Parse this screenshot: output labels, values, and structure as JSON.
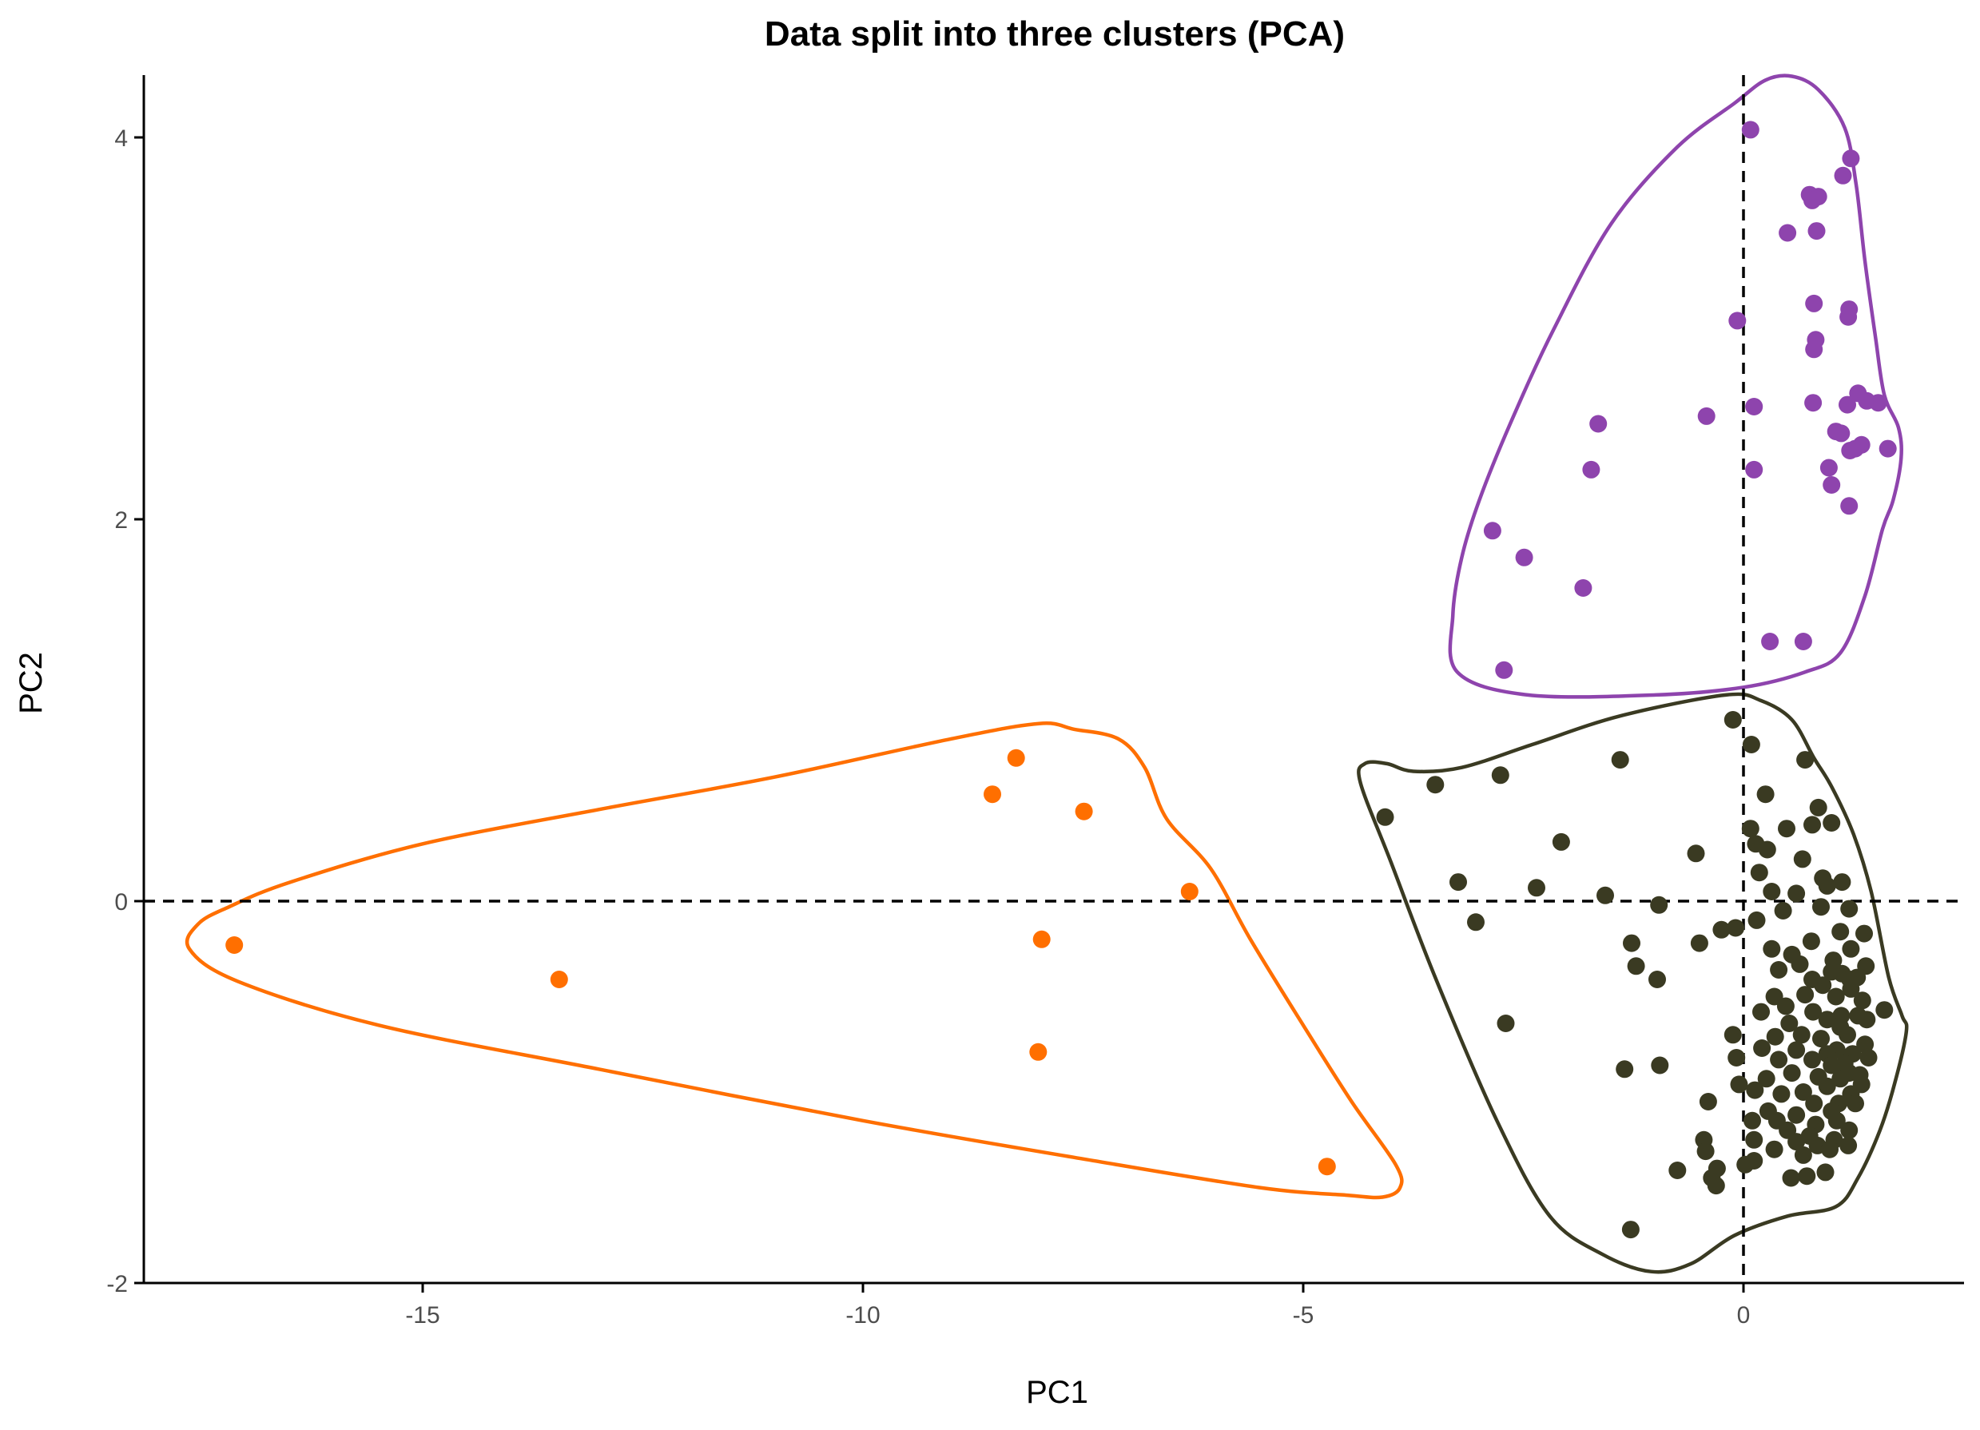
{
  "chart_data": {
    "type": "scatter",
    "title": "Data split into three clusters (PCA)",
    "xlabel": "PC1",
    "ylabel": "PC2",
    "xlim": [
      -18.4,
      5.0
    ],
    "ylim": [
      -2.0,
      4.3
    ],
    "xticks": [
      -15,
      -10,
      -5,
      0
    ],
    "yticks": [
      -2,
      0,
      2,
      4
    ],
    "tick_labels_x": [
      "-15",
      "-10",
      "-5",
      "0"
    ],
    "tick_labels_y": [
      "-2",
      "0",
      "2",
      "4"
    ],
    "grid": false,
    "legend": "none",
    "reference_lines": {
      "x": 0,
      "y": 0,
      "style": "dashed"
    },
    "series": [
      {
        "color": "#8E44AD",
        "points": [
          [
            0.08,
            4.04
          ],
          [
            1.22,
            3.89
          ],
          [
            1.13,
            3.8
          ],
          [
            0.75,
            3.7
          ],
          [
            0.85,
            3.69
          ],
          [
            0.78,
            3.67
          ],
          [
            0.5,
            3.5
          ],
          [
            0.83,
            3.51
          ],
          [
            0.8,
            3.13
          ],
          [
            1.2,
            3.1
          ],
          [
            1.19,
            3.06
          ],
          [
            -0.07,
            3.04
          ],
          [
            0.82,
            2.94
          ],
          [
            0.8,
            2.89
          ],
          [
            1.3,
            2.66
          ],
          [
            1.4,
            2.62
          ],
          [
            1.53,
            2.61
          ],
          [
            1.18,
            2.6
          ],
          [
            0.79,
            2.61
          ],
          [
            0.12,
            2.59
          ],
          [
            -0.42,
            2.54
          ],
          [
            -1.65,
            2.5
          ],
          [
            1.05,
            2.46
          ],
          [
            1.11,
            2.45
          ],
          [
            1.34,
            2.39
          ],
          [
            1.21,
            2.36
          ],
          [
            1.27,
            2.37
          ],
          [
            1.64,
            2.37
          ],
          [
            0.12,
            2.26
          ],
          [
            -1.73,
            2.26
          ],
          [
            0.97,
            2.27
          ],
          [
            1.0,
            2.18
          ],
          [
            1.2,
            2.07
          ],
          [
            -2.85,
            1.94
          ],
          [
            -2.49,
            1.8
          ],
          [
            -1.82,
            1.64
          ],
          [
            0.3,
            1.36
          ],
          [
            0.68,
            1.36
          ],
          [
            -2.72,
            1.21
          ]
        ]
      },
      {
        "color": "#FF6F00",
        "points": [
          [
            -8.26,
            0.75
          ],
          [
            -8.53,
            0.56
          ],
          [
            -7.49,
            0.47
          ],
          [
            -6.29,
            0.05
          ],
          [
            -17.14,
            -0.23
          ],
          [
            -7.97,
            -0.2
          ],
          [
            -13.45,
            -0.41
          ],
          [
            -8.01,
            -0.79
          ],
          [
            -4.73,
            -1.39
          ]
        ]
      },
      {
        "color": "#3A3A22",
        "points": [
          [
            -0.12,
            0.95
          ],
          [
            0.09,
            0.82
          ],
          [
            0.7,
            0.74
          ],
          [
            -1.4,
            0.74
          ],
          [
            -2.76,
            0.66
          ],
          [
            -3.5,
            0.61
          ],
          [
            0.25,
            0.56
          ],
          [
            0.85,
            0.49
          ],
          [
            -4.07,
            0.44
          ],
          [
            1.0,
            0.41
          ],
          [
            0.78,
            0.4
          ],
          [
            0.49,
            0.38
          ],
          [
            0.08,
            0.38
          ],
          [
            -2.07,
            0.31
          ],
          [
            0.14,
            0.3
          ],
          [
            0.27,
            0.27
          ],
          [
            -0.54,
            0.25
          ],
          [
            0.67,
            0.22
          ],
          [
            0.18,
            0.15
          ],
          [
            0.9,
            0.12
          ],
          [
            1.12,
            0.1
          ],
          [
            0.95,
            0.08
          ],
          [
            -3.24,
            0.1
          ],
          [
            -2.35,
            0.07
          ],
          [
            -1.57,
            0.03
          ],
          [
            0.32,
            0.05
          ],
          [
            0.6,
            0.04
          ],
          [
            0.88,
            -0.03
          ],
          [
            1.2,
            -0.04
          ],
          [
            0.45,
            -0.05
          ],
          [
            -0.96,
            -0.02
          ],
          [
            -3.04,
            -0.11
          ],
          [
            0.15,
            -0.1
          ],
          [
            -0.25,
            -0.15
          ],
          [
            -0.09,
            -0.14
          ],
          [
            1.1,
            -0.16
          ],
          [
            1.37,
            -0.17
          ],
          [
            0.77,
            -0.21
          ],
          [
            -0.5,
            -0.22
          ],
          [
            -1.27,
            -0.22
          ],
          [
            0.32,
            -0.25
          ],
          [
            1.22,
            -0.25
          ],
          [
            0.55,
            -0.28
          ],
          [
            1.02,
            -0.31
          ],
          [
            0.64,
            -0.33
          ],
          [
            -1.22,
            -0.34
          ],
          [
            0.4,
            -0.36
          ],
          [
            1.39,
            -0.34
          ],
          [
            1.0,
            -0.37
          ],
          [
            1.12,
            -0.38
          ],
          [
            1.29,
            -0.4
          ],
          [
            1.21,
            -0.41
          ],
          [
            0.78,
            -0.41
          ],
          [
            -0.98,
            -0.41
          ],
          [
            0.9,
            -0.44
          ],
          [
            1.22,
            -0.46
          ],
          [
            0.7,
            -0.49
          ],
          [
            0.35,
            -0.5
          ],
          [
            1.05,
            -0.5
          ],
          [
            1.35,
            -0.52
          ],
          [
            0.48,
            -0.55
          ],
          [
            0.79,
            -0.58
          ],
          [
            1.11,
            -0.6
          ],
          [
            1.3,
            -0.6
          ],
          [
            1.6,
            -0.57
          ],
          [
            0.2,
            -0.58
          ],
          [
            -2.7,
            -0.64
          ],
          [
            0.52,
            -0.64
          ],
          [
            0.95,
            -0.62
          ],
          [
            1.4,
            -0.62
          ],
          [
            1.1,
            -0.66
          ],
          [
            -0.12,
            -0.7
          ],
          [
            0.66,
            -0.7
          ],
          [
            1.18,
            -0.7
          ],
          [
            0.36,
            -0.71
          ],
          [
            0.88,
            -0.72
          ],
          [
            1.38,
            -0.75
          ],
          [
            1.06,
            -0.78
          ],
          [
            0.6,
            -0.78
          ],
          [
            0.21,
            -0.77
          ],
          [
            0.95,
            -0.8
          ],
          [
            1.24,
            -0.8
          ],
          [
            -0.08,
            -0.82
          ],
          [
            1.42,
            -0.82
          ],
          [
            0.4,
            -0.83
          ],
          [
            0.78,
            -0.83
          ],
          [
            1.0,
            -0.86
          ],
          [
            1.15,
            -0.85
          ],
          [
            -0.95,
            -0.86
          ],
          [
            -1.35,
            -0.88
          ],
          [
            0.55,
            -0.9
          ],
          [
            1.2,
            -0.9
          ],
          [
            1.32,
            -0.91
          ],
          [
            0.26,
            -0.93
          ],
          [
            0.85,
            -0.92
          ],
          [
            1.1,
            -0.93
          ],
          [
            1.34,
            -0.96
          ],
          [
            -0.05,
            -0.96
          ],
          [
            0.95,
            -0.97
          ],
          [
            0.13,
            -0.99
          ],
          [
            0.68,
            -1.0
          ],
          [
            1.22,
            -1.01
          ],
          [
            0.43,
            -1.01
          ],
          [
            -0.4,
            -1.05
          ],
          [
            0.8,
            -1.06
          ],
          [
            1.08,
            -1.06
          ],
          [
            1.27,
            -1.06
          ],
          [
            0.28,
            -1.1
          ],
          [
            1.0,
            -1.1
          ],
          [
            0.6,
            -1.12
          ],
          [
            0.38,
            -1.15
          ],
          [
            0.1,
            -1.15
          ],
          [
            0.82,
            -1.17
          ],
          [
            1.06,
            -1.15
          ],
          [
            0.5,
            -1.2
          ],
          [
            1.2,
            -1.2
          ],
          [
            0.75,
            -1.23
          ],
          [
            0.12,
            -1.25
          ],
          [
            1.03,
            -1.25
          ],
          [
            0.6,
            -1.26
          ],
          [
            0.84,
            -1.28
          ],
          [
            1.19,
            -1.28
          ],
          [
            -0.45,
            -1.25
          ],
          [
            0.35,
            -1.3
          ],
          [
            0.98,
            -1.3
          ],
          [
            0.68,
            -1.33
          ],
          [
            -0.43,
            -1.31
          ],
          [
            0.12,
            -1.36
          ],
          [
            0.02,
            -1.38
          ],
          [
            0.93,
            -1.42
          ],
          [
            -0.3,
            -1.4
          ],
          [
            0.72,
            -1.44
          ],
          [
            -0.75,
            -1.41
          ],
          [
            -0.36,
            -1.45
          ],
          [
            0.54,
            -1.45
          ],
          [
            -0.31,
            -1.49
          ],
          [
            -1.28,
            -1.72
          ]
        ]
      }
    ],
    "hulls": [
      {
        "color": "#8E44AD",
        "points": [
          [
            -0.1,
            4.18
          ],
          [
            0.25,
            4.3
          ],
          [
            0.55,
            4.32
          ],
          [
            0.85,
            4.25
          ],
          [
            1.15,
            4.05
          ],
          [
            1.28,
            3.75
          ],
          [
            1.38,
            3.35
          ],
          [
            1.5,
            2.95
          ],
          [
            1.6,
            2.65
          ],
          [
            1.76,
            2.48
          ],
          [
            1.79,
            2.32
          ],
          [
            1.7,
            2.1
          ],
          [
            1.58,
            1.95
          ],
          [
            1.38,
            1.6
          ],
          [
            1.1,
            1.3
          ],
          [
            0.7,
            1.2
          ],
          [
            0.0,
            1.12
          ],
          [
            -1.0,
            1.08
          ],
          [
            -2.45,
            1.08
          ],
          [
            -3.25,
            1.2
          ],
          [
            -3.3,
            1.5
          ],
          [
            -3.2,
            1.8
          ],
          [
            -3.0,
            2.1
          ],
          [
            -2.65,
            2.5
          ],
          [
            -2.15,
            3.0
          ],
          [
            -1.5,
            3.55
          ],
          [
            -0.75,
            3.95
          ],
          [
            -0.1,
            4.18
          ]
        ]
      },
      {
        "color": "#FF6F00",
        "points": [
          [
            -8.0,
            0.93
          ],
          [
            -7.6,
            0.9
          ],
          [
            -7.1,
            0.85
          ],
          [
            -6.8,
            0.7
          ],
          [
            -6.55,
            0.43
          ],
          [
            -6.05,
            0.17
          ],
          [
            -5.6,
            -0.2
          ],
          [
            -5.0,
            -0.65
          ],
          [
            -4.45,
            -1.05
          ],
          [
            -3.95,
            -1.38
          ],
          [
            -3.9,
            -1.5
          ],
          [
            -4.1,
            -1.55
          ],
          [
            -4.5,
            -1.54
          ],
          [
            -5.5,
            -1.5
          ],
          [
            -7.5,
            -1.35
          ],
          [
            -10.0,
            -1.15
          ],
          [
            -13.0,
            -0.88
          ],
          [
            -15.5,
            -0.65
          ],
          [
            -17.1,
            -0.42
          ],
          [
            -17.65,
            -0.25
          ],
          [
            -17.55,
            -0.12
          ],
          [
            -17.2,
            -0.03
          ],
          [
            -16.5,
            0.1
          ],
          [
            -15.0,
            0.3
          ],
          [
            -13.0,
            0.48
          ],
          [
            -11.0,
            0.65
          ],
          [
            -9.0,
            0.85
          ],
          [
            -8.0,
            0.93
          ]
        ]
      },
      {
        "color": "#3A3A22",
        "points": [
          [
            -0.2,
            1.08
          ],
          [
            0.2,
            1.05
          ],
          [
            0.55,
            0.95
          ],
          [
            0.8,
            0.75
          ],
          [
            1.0,
            0.6
          ],
          [
            1.25,
            0.35
          ],
          [
            1.45,
            0.05
          ],
          [
            1.65,
            -0.4
          ],
          [
            1.8,
            -0.6
          ],
          [
            1.85,
            -0.68
          ],
          [
            1.72,
            -0.95
          ],
          [
            1.55,
            -1.2
          ],
          [
            1.3,
            -1.45
          ],
          [
            1.05,
            -1.6
          ],
          [
            0.5,
            -1.65
          ],
          [
            -0.1,
            -1.75
          ],
          [
            -0.6,
            -1.9
          ],
          [
            -1.05,
            -1.94
          ],
          [
            -1.6,
            -1.85
          ],
          [
            -2.2,
            -1.65
          ],
          [
            -2.8,
            -1.15
          ],
          [
            -3.5,
            -0.4
          ],
          [
            -4.0,
            0.2
          ],
          [
            -4.35,
            0.62
          ],
          [
            -4.3,
            0.72
          ],
          [
            -4.05,
            0.72
          ],
          [
            -3.75,
            0.68
          ],
          [
            -3.2,
            0.7
          ],
          [
            -2.4,
            0.82
          ],
          [
            -1.4,
            0.97
          ],
          [
            -0.2,
            1.08
          ]
        ]
      }
    ]
  }
}
